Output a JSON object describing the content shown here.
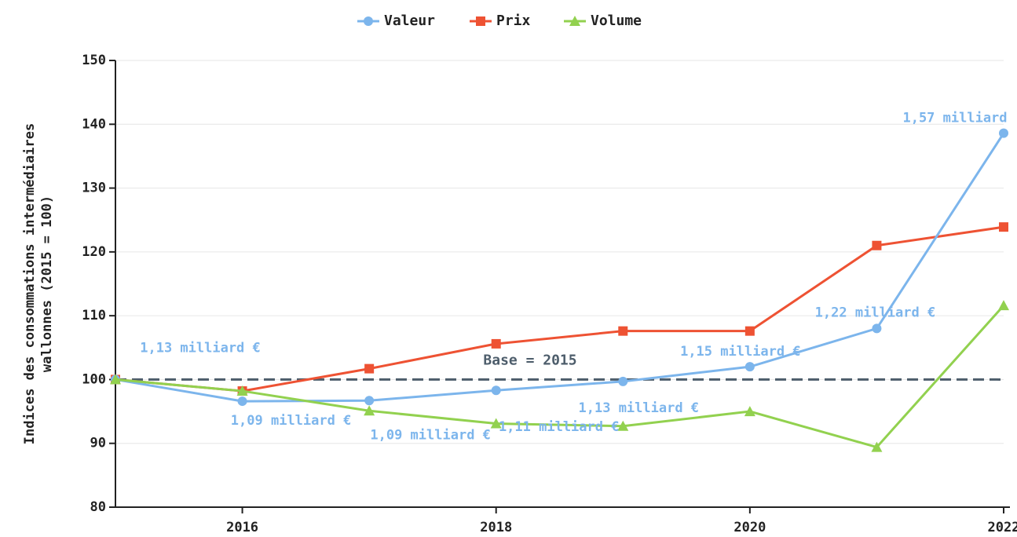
{
  "chart_data": {
    "type": "line",
    "ylabel": [
      "Indices des consommations intermédiaires",
      "wallonnes (2015 = 100)"
    ],
    "x": [
      2015,
      2016,
      2017,
      2018,
      2019,
      2020,
      2021,
      2022
    ],
    "xlim": [
      2015,
      2022
    ],
    "xticks": [
      2016,
      2018,
      2020,
      2022
    ],
    "ylim": [
      80,
      150
    ],
    "yticks": [
      80,
      90,
      100,
      110,
      120,
      130,
      140,
      150
    ],
    "grid": true,
    "legend": "top",
    "reference": {
      "value": 100,
      "label": "Base = 2015"
    },
    "series": [
      {
        "name": "Valeur",
        "color": "#7cb5ec",
        "marker": "circle",
        "values": [
          100,
          96.6,
          96.7,
          98.3,
          99.7,
          102,
          108,
          138.6
        ],
        "value_labels": [
          "1,13 milliard €",
          "1,09 milliard €",
          "1,09 milliard €",
          "1,11 milliard €",
          "1,13 milliard €",
          "1,15 milliard €",
          "1,22 milliard €",
          "1,57 milliard"
        ]
      },
      {
        "name": "Prix",
        "color": "#ee5233",
        "marker": "square",
        "values": [
          100,
          98.2,
          101.7,
          105.6,
          107.6,
          107.6,
          121,
          123.9
        ]
      },
      {
        "name": "Volume",
        "color": "#92d14f",
        "marker": "triangle",
        "values": [
          100,
          98.2,
          95.1,
          93.1,
          92.7,
          95,
          89.4,
          111.6
        ]
      }
    ]
  }
}
